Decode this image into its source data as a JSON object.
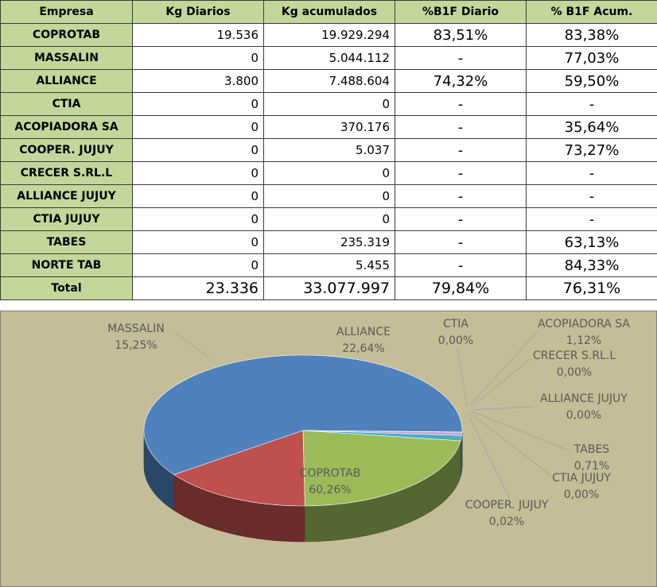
{
  "table": {
    "headers": [
      "Empresa",
      "Kg Diarios",
      "Kg acumulados",
      "%B1F Diario",
      "% B1F Acum."
    ],
    "rows": [
      [
        "COPROTAB",
        "19.536",
        "19.929.294",
        "83,51%",
        "83,38%"
      ],
      [
        "MASSALIN",
        "0",
        "5.044.112",
        "-",
        "77,03%"
      ],
      [
        "ALLIANCE",
        "3.800",
        "7.488.604",
        "74,32%",
        "59,50%"
      ],
      [
        "CTIA",
        "0",
        "0",
        "-",
        "-"
      ],
      [
        "ACOPIADORA SA",
        "0",
        "370.176",
        "-",
        "35,64%"
      ],
      [
        "COOPER. JUJUY",
        "0",
        "5.037",
        "-",
        "73,27%"
      ],
      [
        "CRECER S.RL.L",
        "0",
        "0",
        "-",
        "-"
      ],
      [
        "ALLIANCE JUJUY",
        "0",
        "0",
        "-",
        "-"
      ],
      [
        "CTIA JUJUY",
        "0",
        "0",
        "-",
        "-"
      ],
      [
        "TABES",
        "0",
        "235.319",
        "-",
        "63,13%"
      ],
      [
        "NORTE TAB",
        "0",
        "5.455",
        "-",
        "84,33%"
      ]
    ],
    "total": [
      "Total",
      "23.336",
      "33.077.997",
      "79,84%",
      "76,31%"
    ]
  },
  "chart_data": {
    "type": "pie",
    "style": "3d",
    "background": "#c4bd97",
    "categories": [
      "COPROTAB",
      "MASSALIN",
      "ALLIANCE",
      "CTIA",
      "ACOPIADORA SA",
      "CRECER S.RL.L",
      "ALLIANCE JUJUY",
      "TABES",
      "CTIA JUJUY",
      "COOPER. JUJUY"
    ],
    "values": [
      60.26,
      15.25,
      22.64,
      0.0,
      1.12,
      0.0,
      0.0,
      0.71,
      0.0,
      0.02
    ],
    "value_labels": [
      "60,26%",
      "15,25%",
      "22,64%",
      "0,00%",
      "1,12%",
      "0,00%",
      "0,00%",
      "0,71%",
      "0,00%",
      "0,02%"
    ],
    "colors": [
      "#4f81bd",
      "#c0504d",
      "#9bbb59",
      "#8064a2",
      "#4bacc6",
      "#f79646",
      "#2c4d75",
      "#b9a7d1",
      "#772c2a",
      "#5f7530"
    ]
  }
}
